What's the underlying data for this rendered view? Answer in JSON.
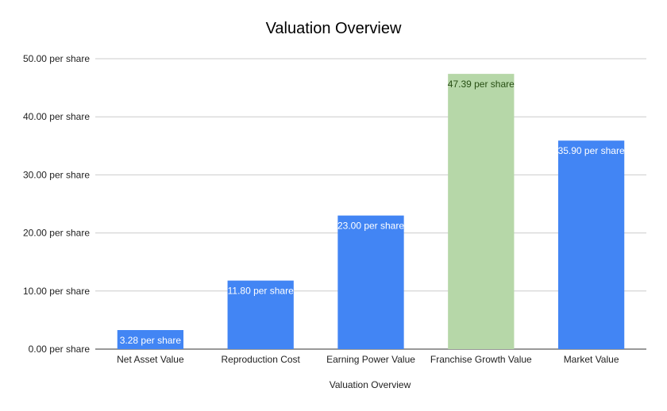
{
  "chart_data": {
    "type": "bar",
    "title": "Valuation Overview",
    "xlabel": "Valuation Overview",
    "ylabel": "",
    "ylim": [
      0,
      50
    ],
    "yticks": [
      0,
      10,
      20,
      30,
      40,
      50
    ],
    "ytick_labels": [
      "0.00 per share",
      "10.00 per share",
      "20.00 per share",
      "30.00 per share",
      "40.00 per share",
      "50.00 per share"
    ],
    "categories": [
      "Net Asset Value",
      "Reproduction Cost",
      "Earning Power Value",
      "Franchise Growth Value",
      "Market Value"
    ],
    "values": [
      3.28,
      11.8,
      23.0,
      47.39,
      35.9
    ],
    "data_labels": [
      "3.28 per share",
      "11.80 per share",
      "23.00 per share",
      "47.39 per share",
      "35.90 per share"
    ],
    "colors": [
      "#4285f4",
      "#4285f4",
      "#4285f4",
      "#b6d7a8",
      "#4285f4"
    ],
    "label_colors": [
      "#ffffff",
      "#ffffff",
      "#ffffff",
      "#274e13",
      "#ffffff"
    ],
    "grid": true,
    "legend": "none"
  }
}
